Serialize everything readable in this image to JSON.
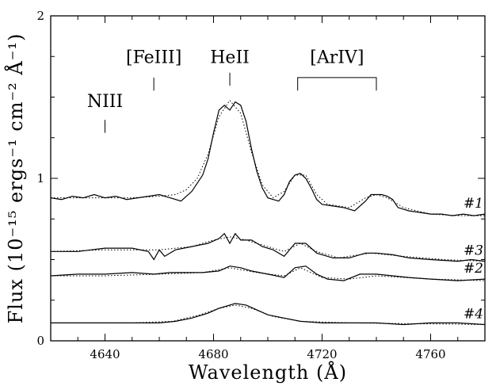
{
  "chart_data": {
    "type": "line",
    "xlabel": "Wavelength (Å)",
    "ylabel": "Flux (10⁻¹⁵ ergs⁻¹ cm⁻² Å⁻¹)",
    "xlim": [
      4620,
      4780
    ],
    "ylim": [
      0,
      2
    ],
    "x_ticks": [
      4640,
      4680,
      4720,
      4760
    ],
    "y_ticks": [
      0,
      1,
      2
    ],
    "grid": false,
    "line_ids": [
      {
        "label": "NIII",
        "x": 4640
      },
      {
        "label": "[FeIII]",
        "x": 4658
      },
      {
        "label": "HeII",
        "x": 4686
      },
      {
        "label": "[ArIV]",
        "x_range": [
          4711,
          4740
        ]
      }
    ],
    "series": [
      {
        "name": "#1",
        "observed_x": [
          4620,
          4624,
          4628,
          4632,
          4636,
          4640,
          4644,
          4648,
          4652,
          4656,
          4660,
          4664,
          4668,
          4672,
          4676,
          4678,
          4680,
          4682,
          4684,
          4686,
          4688,
          4690,
          4692,
          4694,
          4696,
          4698,
          4700,
          4702,
          4704,
          4706,
          4708,
          4710,
          4712,
          4714,
          4716,
          4718,
          4720,
          4724,
          4728,
          4732,
          4736,
          4738,
          4740,
          4742,
          4744,
          4746,
          4748,
          4752,
          4756,
          4760,
          4764,
          4768,
          4772,
          4776,
          4780
        ],
        "observed_y": [
          0.88,
          0.87,
          0.89,
          0.88,
          0.9,
          0.88,
          0.89,
          0.87,
          0.88,
          0.89,
          0.9,
          0.88,
          0.86,
          0.92,
          1.02,
          1.12,
          1.28,
          1.42,
          1.45,
          1.42,
          1.47,
          1.45,
          1.35,
          1.18,
          1.04,
          0.94,
          0.88,
          0.87,
          0.86,
          0.9,
          0.98,
          1.02,
          1.03,
          1.0,
          0.94,
          0.87,
          0.84,
          0.83,
          0.82,
          0.8,
          0.86,
          0.9,
          0.9,
          0.9,
          0.89,
          0.87,
          0.82,
          0.8,
          0.79,
          0.78,
          0.78,
          0.77,
          0.78,
          0.77,
          0.78
        ],
        "model_x": [
          4620,
          4630,
          4640,
          4650,
          4660,
          4666,
          4670,
          4674,
          4678,
          4682,
          4686,
          4690,
          4694,
          4698,
          4702,
          4706,
          4710,
          4714,
          4718,
          4722,
          4730,
          4736,
          4740,
          4744,
          4750,
          4760,
          4770,
          4780
        ],
        "model_y": [
          0.88,
          0.88,
          0.88,
          0.88,
          0.89,
          0.9,
          0.93,
          1.0,
          1.15,
          1.38,
          1.48,
          1.4,
          1.16,
          0.96,
          0.88,
          0.92,
          1.02,
          1.02,
          0.9,
          0.84,
          0.82,
          0.88,
          0.9,
          0.88,
          0.82,
          0.78,
          0.77,
          0.77
        ]
      },
      {
        "name": "#3",
        "observed_x": [
          4620,
          4630,
          4640,
          4650,
          4656,
          4658,
          4660,
          4662,
          4666,
          4672,
          4678,
          4682,
          4684,
          4686,
          4688,
          4690,
          4694,
          4698,
          4702,
          4706,
          4710,
          4714,
          4718,
          4724,
          4730,
          4736,
          4740,
          4746,
          4752,
          4760,
          4770,
          4775,
          4780
        ],
        "observed_y": [
          0.55,
          0.55,
          0.57,
          0.57,
          0.55,
          0.5,
          0.56,
          0.52,
          0.56,
          0.58,
          0.6,
          0.63,
          0.66,
          0.6,
          0.66,
          0.62,
          0.62,
          0.58,
          0.56,
          0.52,
          0.6,
          0.6,
          0.54,
          0.51,
          0.51,
          0.54,
          0.54,
          0.53,
          0.51,
          0.5,
          0.49,
          0.5,
          0.49
        ],
        "model_x": [
          4620,
          4640,
          4660,
          4672,
          4680,
          4686,
          4692,
          4700,
          4706,
          4712,
          4718,
          4726,
          4738,
          4750,
          4765,
          4780
        ],
        "model_y": [
          0.55,
          0.56,
          0.56,
          0.58,
          0.62,
          0.64,
          0.62,
          0.58,
          0.55,
          0.6,
          0.55,
          0.51,
          0.54,
          0.52,
          0.5,
          0.49
        ]
      },
      {
        "name": "#2",
        "observed_x": [
          4620,
          4630,
          4640,
          4650,
          4658,
          4664,
          4670,
          4676,
          4682,
          4686,
          4690,
          4694,
          4700,
          4706,
          4710,
          4714,
          4718,
          4722,
          4728,
          4734,
          4740,
          4746,
          4752,
          4760,
          4770,
          4780
        ],
        "observed_y": [
          0.4,
          0.41,
          0.41,
          0.42,
          0.41,
          0.42,
          0.42,
          0.42,
          0.43,
          0.46,
          0.45,
          0.43,
          0.41,
          0.39,
          0.45,
          0.46,
          0.41,
          0.38,
          0.37,
          0.41,
          0.41,
          0.4,
          0.39,
          0.38,
          0.37,
          0.38
        ],
        "model_x": [
          4620,
          4640,
          4660,
          4676,
          4686,
          4696,
          4706,
          4712,
          4720,
          4730,
          4740,
          4760,
          4780
        ],
        "model_y": [
          0.4,
          0.4,
          0.41,
          0.42,
          0.45,
          0.42,
          0.4,
          0.45,
          0.39,
          0.38,
          0.4,
          0.38,
          0.37
        ]
      },
      {
        "name": "#4",
        "observed_x": [
          4620,
          4630,
          4640,
          4650,
          4660,
          4666,
          4672,
          4678,
          4682,
          4686,
          4688,
          4692,
          4696,
          4700,
          4706,
          4712,
          4720,
          4730,
          4740,
          4750,
          4760,
          4770,
          4780
        ],
        "observed_y": [
          0.11,
          0.11,
          0.11,
          0.11,
          0.11,
          0.12,
          0.14,
          0.17,
          0.2,
          0.22,
          0.23,
          0.22,
          0.19,
          0.16,
          0.14,
          0.12,
          0.11,
          0.11,
          0.11,
          0.1,
          0.11,
          0.11,
          0.1
        ],
        "model_x": [
          4620,
          4650,
          4665,
          4675,
          4682,
          4688,
          4694,
          4702,
          4712,
          4730,
          4780
        ],
        "model_y": [
          0.11,
          0.11,
          0.12,
          0.16,
          0.2,
          0.22,
          0.2,
          0.15,
          0.12,
          0.11,
          0.1
        ]
      }
    ]
  }
}
